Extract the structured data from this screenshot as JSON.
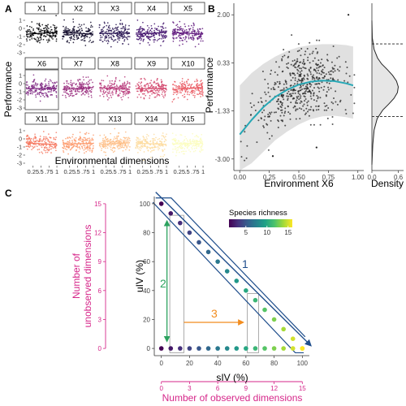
{
  "panels": {
    "A": {
      "letter": "A"
    },
    "B": {
      "letter": "B"
    },
    "C": {
      "letter": "C"
    }
  },
  "colors": {
    "panel_a_gradient": [
      "#000004",
      "#1d1147",
      "#51127c",
      "#822681",
      "#b73779",
      "#e75263",
      "#fc8961",
      "#fec488",
      "#fcfdbf"
    ],
    "ribbon": "#e0e0e0",
    "trend": "#26a7b5",
    "arrow1": "#1f4e8c",
    "arrow2": "#2ca25f",
    "arrow3": "#f28c1e",
    "unobserved_axis": "#d6278a",
    "viridis": [
      "#440154",
      "#46327e",
      "#365c8d",
      "#277f8e",
      "#1fa187",
      "#4ac16d",
      "#a0da39",
      "#fde725"
    ]
  },
  "chart_data": [
    {
      "id": "A",
      "type": "scatter",
      "facets": [
        "X1",
        "X2",
        "X3",
        "X4",
        "X5",
        "X6",
        "X7",
        "X8",
        "X9",
        "X10",
        "X11",
        "X12",
        "X13",
        "X14",
        "X15"
      ],
      "xlabel": "Environmental dimensions",
      "ylabel": "Performance",
      "y_ticks": [
        "1",
        "0",
        "-1",
        "-2",
        "-3"
      ],
      "y_tick_values": [
        1,
        0,
        -1,
        -2,
        -3
      ],
      "ylim": [
        -3.3,
        1.7
      ],
      "x_tick_labels": [
        "0.25",
        ".5",
        ".75",
        "1"
      ],
      "x_tick_values": [
        0.25,
        0.5,
        0.75,
        1
      ],
      "xlim": [
        0,
        1.05
      ],
      "highlighted_facet": "X6"
    },
    {
      "id": "B",
      "type": "scatter",
      "xlabel": "Environment X6",
      "ylabel": "Performance",
      "x_ticks": [
        "0.00",
        "0.25",
        "0.50",
        "0.75",
        "1.00"
      ],
      "x_tick_values": [
        0,
        0.25,
        0.5,
        0.75,
        1
      ],
      "xlim": [
        -0.05,
        1.05
      ],
      "y_ticks": [
        "2.00",
        "0.33",
        "-1.33",
        "-3.00"
      ],
      "y_tick_values": [
        2.0,
        0.33,
        -1.33,
        -3.0
      ],
      "ylim": [
        -3.4,
        2.4
      ],
      "trend": {
        "x": [
          0,
          0.1,
          0.2,
          0.3,
          0.4,
          0.5,
          0.6,
          0.7,
          0.8,
          0.9,
          0.96
        ],
        "y": [
          -2.15,
          -1.65,
          -1.2,
          -0.85,
          -0.6,
          -0.42,
          -0.32,
          -0.28,
          -0.3,
          -0.38,
          -0.45
        ]
      },
      "ribbon_upper": [
        -0.45,
        -0.02,
        0.3,
        0.55,
        0.75,
        0.88,
        0.95,
        0.98,
        0.98,
        0.95,
        0.9
      ],
      "ribbon_lower": [
        -3.4,
        -3.15,
        -2.75,
        -2.35,
        -2.05,
        -1.8,
        -1.62,
        -1.52,
        -1.5,
        -1.55,
        -1.6
      ],
      "extra_points": [
        {
          "x": 0.92,
          "y": 2.0
        },
        {
          "x": 0.65,
          "y": -2.6
        },
        {
          "x": 0.28,
          "y": -2.9
        }
      ],
      "density": {
        "xlabel": "Density",
        "x_ticks": [
          "0.0",
          "0.6"
        ],
        "x_tick_values": [
          0,
          0.6
        ],
        "xlim": [
          0,
          0.72
        ],
        "curve_y": [
          1.8,
          1.2,
          0.8,
          0.5,
          0.3,
          0.1,
          -0.1,
          -0.3,
          -0.5,
          -0.7,
          -0.9,
          -1.1,
          -1.3,
          -1.6,
          -2.0,
          -2.5,
          -3.2
        ],
        "curve_d": [
          0.0,
          0.01,
          0.05,
          0.13,
          0.22,
          0.35,
          0.47,
          0.56,
          0.6,
          0.58,
          0.5,
          0.38,
          0.25,
          0.12,
          0.05,
          0.02,
          0.0
        ],
        "quantile_lines": [
          0.99,
          -1.53
        ]
      }
    },
    {
      "id": "C",
      "type": "scatter",
      "xlabel": "sIV (%)",
      "ylabel": "uIV (%)",
      "xlim": [
        -5,
        105
      ],
      "ylim": [
        -5,
        105
      ],
      "x_ticks": [
        "0",
        "20",
        "40",
        "60",
        "80",
        "100"
      ],
      "x_tick_values": [
        0,
        20,
        40,
        60,
        80,
        100
      ],
      "y_ticks": [
        "100",
        "80",
        "60",
        "40",
        "20",
        "0"
      ],
      "y_tick_values": [
        100,
        80,
        60,
        40,
        20,
        0
      ],
      "diagonal_points": {
        "x": [
          0,
          6.67,
          13.33,
          20,
          26.67,
          33.33,
          40,
          46.67,
          53.33,
          60,
          66.67,
          73.33,
          80,
          86.67,
          93.33,
          100
        ],
        "y": [
          100,
          93.33,
          86.67,
          80,
          73.33,
          66.67,
          60,
          53.33,
          46.67,
          40,
          33.33,
          26.67,
          20,
          13.33,
          6.67,
          0
        ],
        "richness": [
          1,
          2,
          3,
          4,
          5,
          6,
          7,
          8,
          9,
          10,
          11,
          12,
          13,
          14,
          15,
          16
        ]
      },
      "bottom_points": {
        "x": [
          0,
          6.67,
          13.33,
          20,
          26.67,
          33.33,
          40,
          46.67,
          53.33,
          60,
          66.67,
          73.33,
          80,
          86.67,
          93.33,
          100
        ],
        "y": [
          0,
          0,
          0,
          0,
          0,
          0,
          0,
          0,
          0,
          0,
          0,
          0,
          0,
          0,
          0,
          0
        ],
        "richness": [
          1,
          2,
          3,
          4,
          5,
          6,
          7,
          8,
          9,
          10,
          11,
          12,
          13,
          14,
          15,
          16
        ]
      },
      "legend": {
        "title": "Species richness",
        "ticks": [
          "5",
          "10",
          "15"
        ],
        "tick_values": [
          5,
          10,
          15
        ],
        "range": [
          1,
          16
        ]
      },
      "annotations": {
        "arrow1_label": "1",
        "arrow2_label": "2",
        "arrow3_label": "3"
      },
      "observed_axis": {
        "label": "Number of observed dimensions",
        "ticks": [
          "0",
          "3",
          "6",
          "9",
          "12",
          "15"
        ],
        "tick_values": [
          0,
          3,
          6,
          9,
          12,
          15
        ]
      },
      "unobserved_axis": {
        "label_line1": "Number of",
        "label_line2": "unobserved dimensions",
        "ticks": [
          "15",
          "12",
          "9",
          "6",
          "3",
          "0"
        ],
        "tick_values": [
          15,
          12,
          9,
          6,
          3,
          0
        ]
      }
    }
  ]
}
